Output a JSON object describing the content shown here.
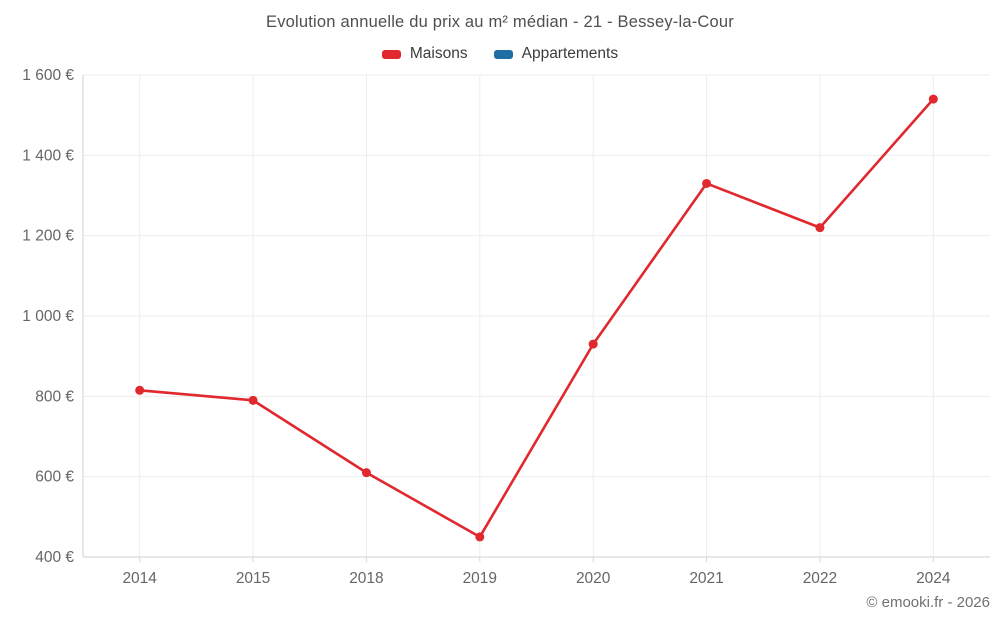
{
  "header": {
    "title": "Evolution annuelle du prix au m² médian - 21 - Bessey-la-Cour"
  },
  "footer": {
    "credit": "© emooki.fr - 2026"
  },
  "colors": {
    "maisons": "#e0282e",
    "appartements": "#1d6fa5",
    "grid_line": "#ededed",
    "axis_line": "#d9d9d9",
    "tick_text": "#666666",
    "title_text": "#4f4f4f",
    "legend_text": "#3c3c3c",
    "footer_text": "#707070",
    "background": "#ffffff"
  },
  "chart_data": {
    "type": "line",
    "title": "Evolution annuelle du prix au m² médian - 21 - Bessey-la-Cour",
    "xlabel": "",
    "ylabel": "",
    "unit": "€",
    "categories": [
      "2014",
      "2015",
      "2018",
      "2019",
      "2020",
      "2021",
      "2022",
      "2024"
    ],
    "series": [
      {
        "name": "Maisons",
        "color": "#e0282e",
        "values": [
          815,
          790,
          610,
          450,
          930,
          1330,
          1220,
          1540
        ]
      },
      {
        "name": "Appartements",
        "color": "#1d6fa5",
        "values": []
      }
    ],
    "ylim": [
      400,
      1600
    ],
    "y_ticks": [
      {
        "value": 400,
        "label": "400 €"
      },
      {
        "value": 600,
        "label": "600 €"
      },
      {
        "value": 800,
        "label": "800 €"
      },
      {
        "value": 1000,
        "label": "1 000 €"
      },
      {
        "value": 1200,
        "label": "1 200 €"
      },
      {
        "value": 1400,
        "label": "1 400 €"
      },
      {
        "value": 1600,
        "label": "1 600 €"
      }
    ],
    "grid": true,
    "legend_position": "top"
  }
}
